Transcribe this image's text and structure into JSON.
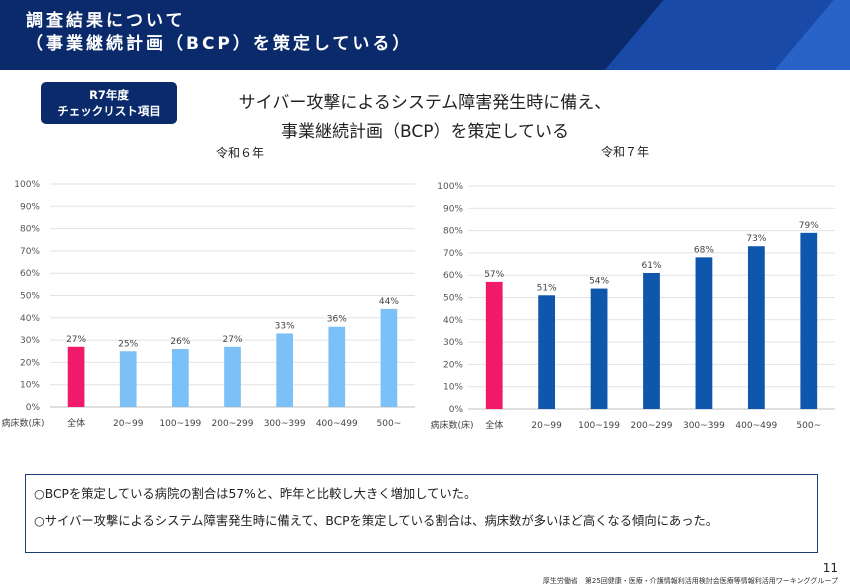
{
  "header": {
    "title": "調査結果について\n（事業継続計画（BCP）を策定している）"
  },
  "badge": {
    "line1": "R7年度",
    "line2": "チェックリスト項目"
  },
  "headline": {
    "line1": "サイバー攻撃によるシステム障害発生時に備え、",
    "line2": "事業継続計画（BCP）を策定している"
  },
  "chart_data": [
    {
      "type": "bar",
      "title": "令和６年",
      "xlabel": "病床数(床)",
      "categories": [
        "全体",
        "20~99",
        "100~199",
        "200~299",
        "300~399",
        "400~499",
        "500~"
      ],
      "values": [
        27,
        25,
        26,
        27,
        33,
        36,
        44
      ],
      "data_labels": [
        "27%",
        "25%",
        "26%",
        "27%",
        "33%",
        "36%",
        "44%"
      ],
      "y_ticks": [
        "0%",
        "10%",
        "20%",
        "30%",
        "40%",
        "50%",
        "60%",
        "70%",
        "80%",
        "90%",
        "100%"
      ],
      "ylim": [
        0,
        100
      ],
      "grid": true,
      "colors": {
        "highlight": "#f0196a",
        "bars": "#7cc0f8"
      }
    },
    {
      "type": "bar",
      "title": "令和７年",
      "xlabel": "病床数(床)",
      "categories": [
        "全体",
        "20~99",
        "100~199",
        "200~299",
        "300~399",
        "400~499",
        "500~"
      ],
      "values": [
        57,
        51,
        54,
        61,
        68,
        73,
        79
      ],
      "data_labels": [
        "57%",
        "51%",
        "54%",
        "61%",
        "68%",
        "73%",
        "79%"
      ],
      "y_ticks": [
        "0%",
        "10%",
        "20%",
        "30%",
        "40%",
        "50%",
        "60%",
        "70%",
        "80%",
        "90%",
        "100%"
      ],
      "ylim": [
        0,
        100
      ],
      "grid": true,
      "colors": {
        "highlight": "#f0196a",
        "bars": "#0f56ad"
      }
    }
  ],
  "notes": [
    "○BCPを策定している病院の割合は57%と、昨年と比較し大きく増加していた。",
    "○サイバー攻撃によるシステム障害発生時に備えて、BCPを策定している割合は、病床数が多いほど高くなる傾向にあった。"
  ],
  "page_number": "11",
  "footer": "厚生労働省　第25回健康・医療・介護情報利活用検討会医療等情報利活用ワーキンググループ"
}
